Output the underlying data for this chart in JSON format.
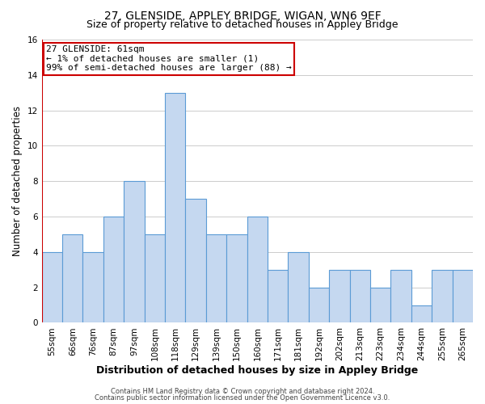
{
  "title": "27, GLENSIDE, APPLEY BRIDGE, WIGAN, WN6 9EF",
  "subtitle": "Size of property relative to detached houses in Appley Bridge",
  "xlabel": "Distribution of detached houses by size in Appley Bridge",
  "ylabel": "Number of detached properties",
  "bin_labels": [
    "55sqm",
    "66sqm",
    "76sqm",
    "87sqm",
    "97sqm",
    "108sqm",
    "118sqm",
    "129sqm",
    "139sqm",
    "150sqm",
    "160sqm",
    "171sqm",
    "181sqm",
    "192sqm",
    "202sqm",
    "213sqm",
    "223sqm",
    "234sqm",
    "244sqm",
    "255sqm",
    "265sqm"
  ],
  "bar_heights": [
    4,
    5,
    4,
    6,
    8,
    5,
    13,
    7,
    5,
    5,
    6,
    3,
    4,
    2,
    3,
    3,
    2,
    3,
    1,
    3,
    3
  ],
  "bar_color": "#c5d8f0",
  "bar_edge_color": "#5b9bd5",
  "bar_edge_width": 0.8,
  "annotation_line1": "27 GLENSIDE: 61sqm",
  "annotation_line2": "← 1% of detached houses are smaller (1)",
  "annotation_line3": "99% of semi-detached houses are larger (88) →",
  "annotation_box_color": "#ffffff",
  "annotation_box_border_color": "#cc0000",
  "ref_line_color": "#cc0000",
  "ylim": [
    0,
    16
  ],
  "yticks": [
    0,
    2,
    4,
    6,
    8,
    10,
    12,
    14,
    16
  ],
  "grid_color": "#cccccc",
  "bg_color": "#ffffff",
  "footer_line1": "Contains HM Land Registry data © Crown copyright and database right 2024.",
  "footer_line2": "Contains public sector information licensed under the Open Government Licence v3.0.",
  "title_fontsize": 10,
  "subtitle_fontsize": 9,
  "xlabel_fontsize": 9,
  "ylabel_fontsize": 8.5,
  "tick_fontsize": 7.5,
  "annotation_fontsize": 8,
  "footer_fontsize": 6
}
